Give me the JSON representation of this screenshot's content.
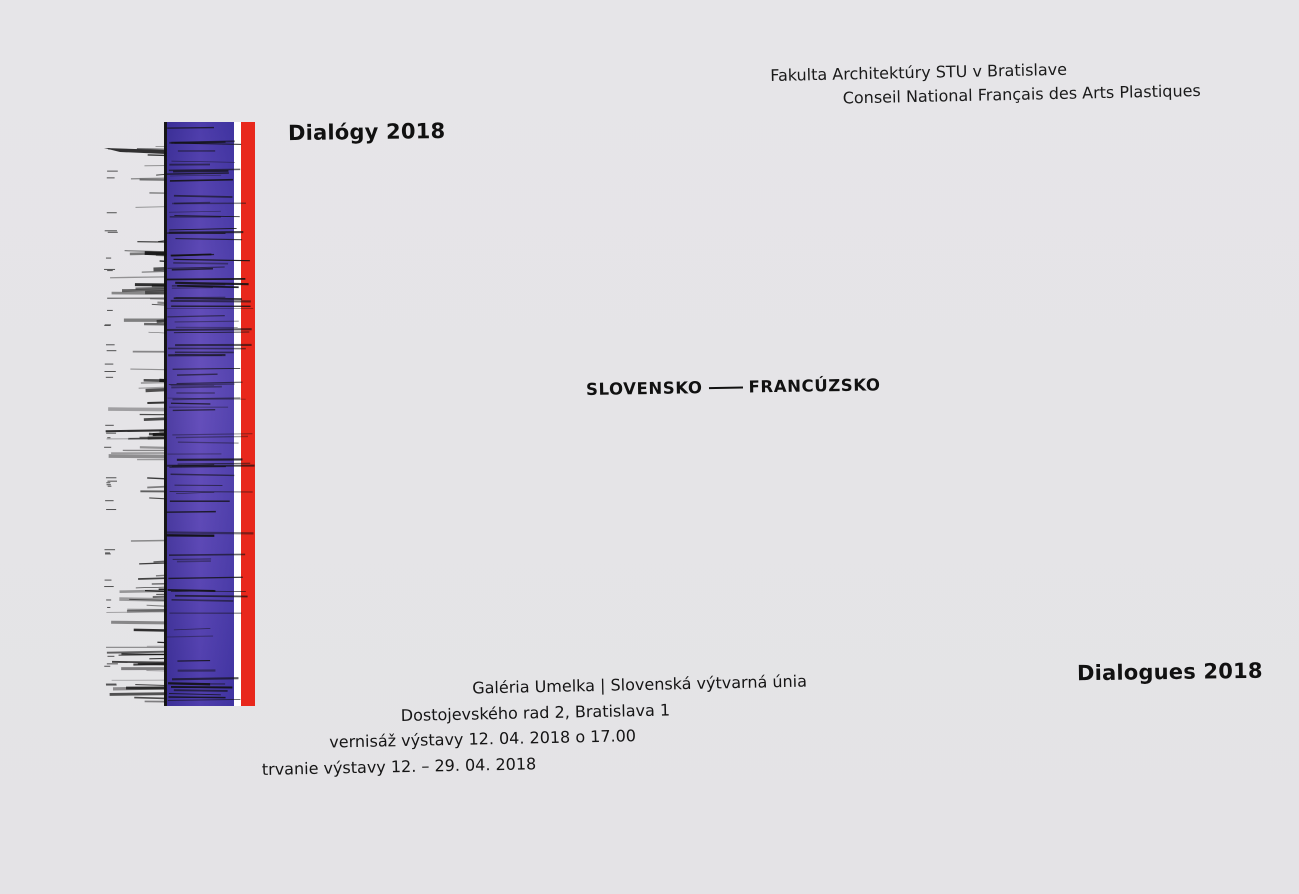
{
  "institutions": {
    "line1": "Fakulta Architektúry STU v Bratislave",
    "line2": "Conseil National Français des Arts Plastiques"
  },
  "title_sk": "Dialógy 2018",
  "title_fr": "Dialogues 2018",
  "countries": {
    "left": "SLOVENSKO",
    "right": "FRANCÚZSKO"
  },
  "venue": {
    "line1": "Galéria Umelka | Slovenská výtvarná únia",
    "line2": "Dostojevského rad 2, Bratislava 1",
    "line3": "vernisáž výstavy 12. 04. 2018 o 17.00",
    "line4": "trvanie výstavy 12. – 29. 04. 2018"
  },
  "artwork": {
    "icon": "tricolor-brushstroke-artwork",
    "colors": {
      "blue": "#4a3aa8",
      "white": "#ffffff",
      "red": "#e8281c",
      "ink": "#111111"
    }
  }
}
